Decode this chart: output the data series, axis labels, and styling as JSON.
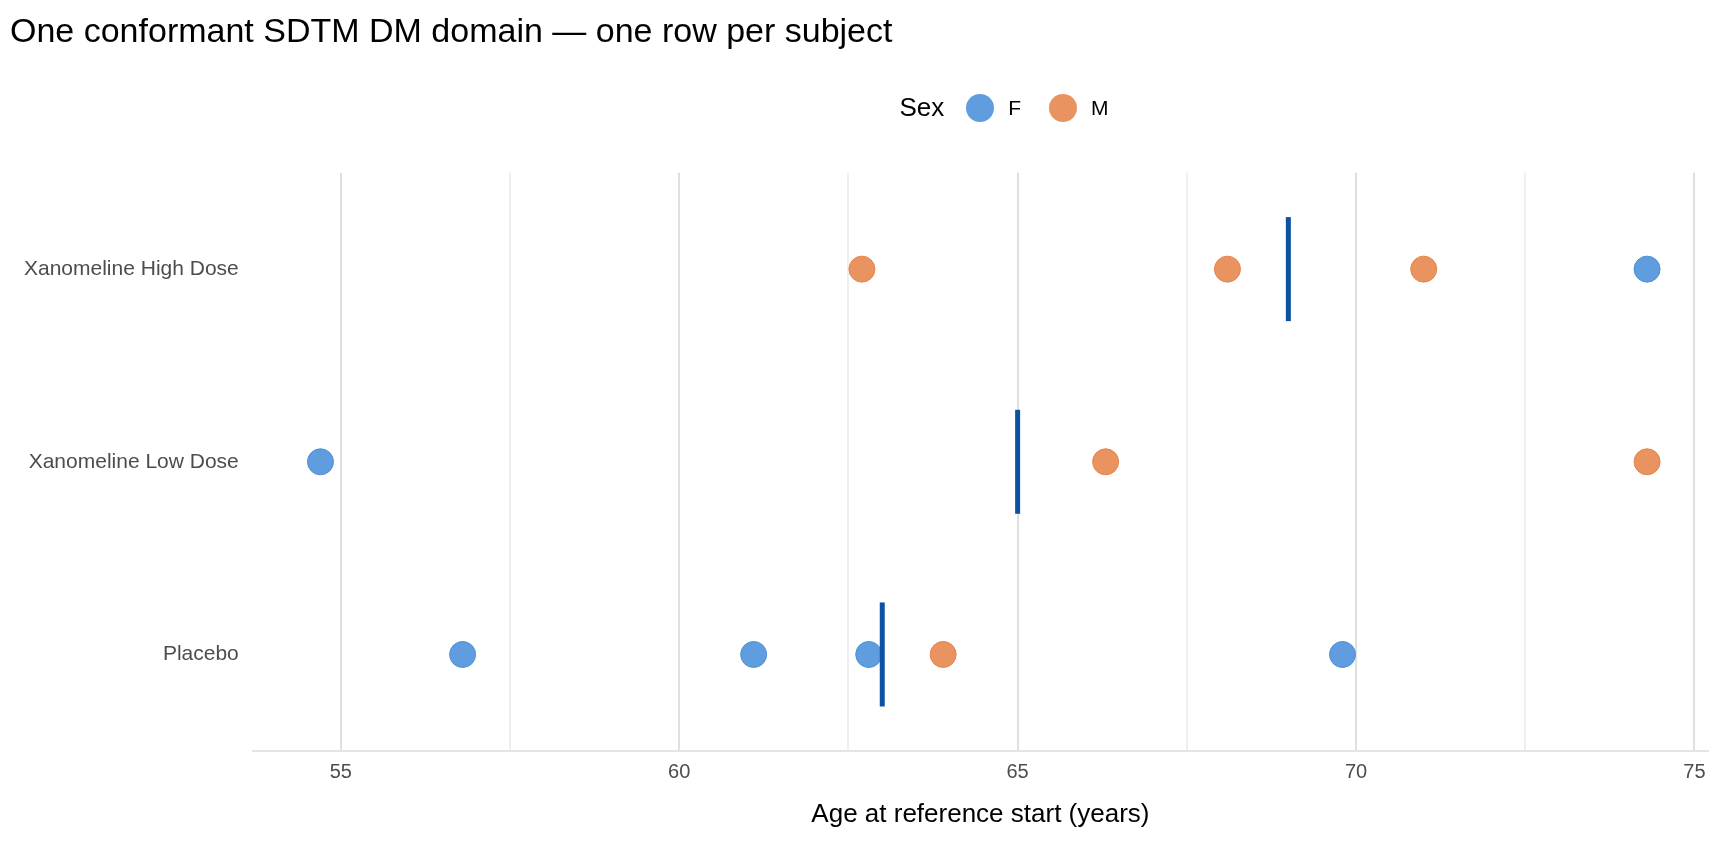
{
  "chart_data": {
    "type": "scatter",
    "title": "One conformant SDTM DM domain — one row per subject",
    "xlabel": "Age at reference start (years)",
    "legend_title": "Sex",
    "legend": "top",
    "orientation": "horizontal",
    "grid": "x",
    "marker": "circle",
    "categories": [
      "Xanomeline High Dose",
      "Xanomeline Low Dose",
      "Placebo"
    ],
    "xlim": [
      53.7,
      75.2
    ],
    "xticks": [
      55,
      {
        "value": 57.5,
        "label": null
      },
      60,
      {
        "value": 62.5,
        "label": null
      },
      65,
      {
        "value": 67.5,
        "label": null
      },
      70,
      {
        "value": 72.5,
        "label": null
      },
      75
    ],
    "series": [
      {
        "name": "F",
        "color": "#4a90d9",
        "x": [
          "Xanomeline High Dose",
          "Xanomeline Low Dose",
          "Placebo",
          "Placebo",
          "Placebo",
          "Placebo"
        ],
        "values": [
          74.3,
          54.7,
          56.8,
          61.1,
          62.8,
          69.8
        ]
      },
      {
        "name": "M",
        "color": "#e6844a",
        "x": [
          "Xanomeline High Dose",
          "Xanomeline High Dose",
          "Xanomeline High Dose",
          "Xanomeline Low Dose",
          "Xanomeline Low Dose",
          "Placebo"
        ],
        "values": [
          62.7,
          68.1,
          71.0,
          66.3,
          74.3,
          63.9
        ]
      },
      {
        "type": "box",
        "color": "#0d52a0",
        "boxes": [
          {
            "low": 69.0,
            "q1": 69.0,
            "median": 69.0,
            "q3": 69.0,
            "high": 69.0
          },
          {
            "low": 65.0,
            "q1": 65.0,
            "median": 65.0,
            "q3": 65.0,
            "high": 65.0
          },
          {
            "low": 63.0,
            "q1": 63.0,
            "median": 63.0,
            "q3": 63.0,
            "high": 63.0
          }
        ]
      }
    ]
  }
}
